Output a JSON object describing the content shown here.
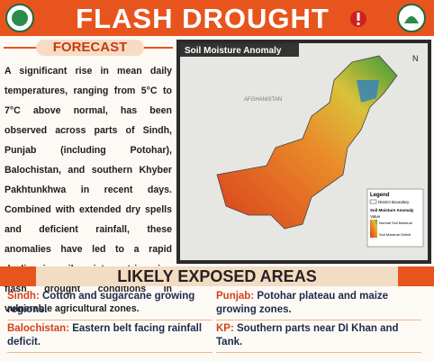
{
  "header": {
    "title": "FLASH DROUGHT"
  },
  "forecast": {
    "heading": "FORECAST",
    "text": "A significant rise in mean daily temperatures, ranging from 5°C to 7°C above normal, has been observed across parts of Sindh, Punjab (including Potohar), Balochistan, and southern Khyber Pakhtunkhwa in recent days. Combined with extended dry spells and deficient rainfall, these anomalies have led to a rapid decline in soil moisture, triggering flash drought conditions in vulnerable agricultural zones."
  },
  "map": {
    "title": "Soil Moisture Anomaly",
    "country_label": "AFGHANISTAN",
    "north": "N",
    "legend": {
      "title": "Legend",
      "boundary": "District Boundary",
      "subtitle": "Soil Moisture Anomaly",
      "value": "Value",
      "high": "Normal Soil Moisture",
      "low": "Soil Moisture Deficit"
    }
  },
  "areas": {
    "heading": "LIKELY EXPOSED AREAS",
    "items": [
      {
        "region": "Sindh:",
        "text": "Cotton and sugarcane growing regions."
      },
      {
        "region": "Punjab:",
        "text": "Potohar plateau and maize growing zones."
      },
      {
        "region": "Balochistan:",
        "text": "Eastern belt facing rainfall deficit."
      },
      {
        "region": "KP:",
        "text": "Southern parts near DI Khan and Tank."
      }
    ]
  }
}
